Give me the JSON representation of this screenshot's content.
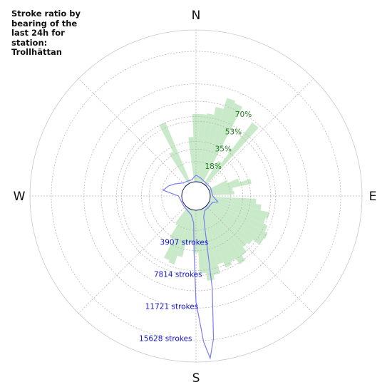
{
  "chart_data": {
    "type": "polar-bar",
    "title": "Stroke ratio by bearing of the last 24h for station: Trollhättan",
    "compass": [
      "N",
      "E",
      "S",
      "W"
    ],
    "ratio_ticks": [
      "18%",
      "35%",
      "53%",
      "70%"
    ],
    "ratio_tick_values": [
      17.5,
      35,
      52.5,
      70
    ],
    "stroke_ticks": [
      "3907 strokes",
      "7814 strokes",
      "11721 strokes",
      "15628 strokes"
    ],
    "stroke_tick_values": [
      3907,
      7814,
      11721,
      15628
    ],
    "bar_width_deg": 5,
    "ratio_by_bearing_pct": [
      {
        "bearing": 0,
        "value": 59
      },
      {
        "bearing": 5,
        "value": 59
      },
      {
        "bearing": 10,
        "value": 60
      },
      {
        "bearing": 15,
        "value": 67
      },
      {
        "bearing": 20,
        "value": 77
      },
      {
        "bearing": 25,
        "value": 75
      },
      {
        "bearing": 35,
        "value": 24
      },
      {
        "bearing": 40,
        "value": 68
      },
      {
        "bearing": 65,
        "value": 17
      },
      {
        "bearing": 70,
        "value": 27
      },
      {
        "bearing": 75,
        "value": 37
      },
      {
        "bearing": 80,
        "value": 20
      },
      {
        "bearing": 85,
        "value": 21
      },
      {
        "bearing": 95,
        "value": 40
      },
      {
        "bearing": 100,
        "value": 45
      },
      {
        "bearing": 105,
        "value": 53
      },
      {
        "bearing": 110,
        "value": 51
      },
      {
        "bearing": 115,
        "value": 55
      },
      {
        "bearing": 120,
        "value": 58
      },
      {
        "bearing": 125,
        "value": 57
      },
      {
        "bearing": 130,
        "value": 50
      },
      {
        "bearing": 135,
        "value": 48
      },
      {
        "bearing": 140,
        "value": 53
      },
      {
        "bearing": 145,
        "value": 58
      },
      {
        "bearing": 150,
        "value": 52
      },
      {
        "bearing": 155,
        "value": 55
      },
      {
        "bearing": 160,
        "value": 50
      },
      {
        "bearing": 165,
        "value": 58
      },
      {
        "bearing": 170,
        "value": 62
      },
      {
        "bearing": 175,
        "value": 55
      },
      {
        "bearing": 180,
        "value": 37
      },
      {
        "bearing": 185,
        "value": 28
      },
      {
        "bearing": 190,
        "value": 30
      },
      {
        "bearing": 195,
        "value": 42
      },
      {
        "bearing": 200,
        "value": 50
      },
      {
        "bearing": 205,
        "value": 48
      },
      {
        "bearing": 210,
        "value": 30
      },
      {
        "bearing": 215,
        "value": 17
      },
      {
        "bearing": 330,
        "value": 31
      },
      {
        "bearing": 335,
        "value": 57
      },
      {
        "bearing": 355,
        "value": 39
      }
    ],
    "strokes_by_bearing": [
      {
        "bearing": 0,
        "value": 800
      },
      {
        "bearing": 15,
        "value": 500
      },
      {
        "bearing": 30,
        "value": 300
      },
      {
        "bearing": 60,
        "value": 300
      },
      {
        "bearing": 90,
        "value": 300
      },
      {
        "bearing": 105,
        "value": 1000
      },
      {
        "bearing": 112,
        "value": 400
      },
      {
        "bearing": 130,
        "value": 300
      },
      {
        "bearing": 150,
        "value": 350
      },
      {
        "bearing": 160,
        "value": 1000
      },
      {
        "bearing": 165,
        "value": 2500
      },
      {
        "bearing": 170,
        "value": 9500
      },
      {
        "bearing": 173,
        "value": 15500
      },
      {
        "bearing": 175,
        "value": 17800
      },
      {
        "bearing": 177,
        "value": 15800
      },
      {
        "bearing": 180,
        "value": 11000
      },
      {
        "bearing": 182,
        "value": 5000
      },
      {
        "bearing": 185,
        "value": 1500
      },
      {
        "bearing": 195,
        "value": 600
      },
      {
        "bearing": 230,
        "value": 200
      },
      {
        "bearing": 270,
        "value": 400
      },
      {
        "bearing": 280,
        "value": 2300
      },
      {
        "bearing": 290,
        "value": 1800
      },
      {
        "bearing": 300,
        "value": 1200
      },
      {
        "bearing": 315,
        "value": 500
      },
      {
        "bearing": 330,
        "value": 350
      },
      {
        "bearing": 345,
        "value": 300
      },
      {
        "bearing": 360,
        "value": 800
      }
    ],
    "grid": true,
    "colors": {
      "ratio_bars": "#c9eac9",
      "stroke_line": "#7b7cf2",
      "ratio_labels": "#1f7a1f",
      "stroke_labels": "#1a1acc",
      "grid": "#b8b8b8",
      "center_ring": "#1a1a66"
    }
  }
}
